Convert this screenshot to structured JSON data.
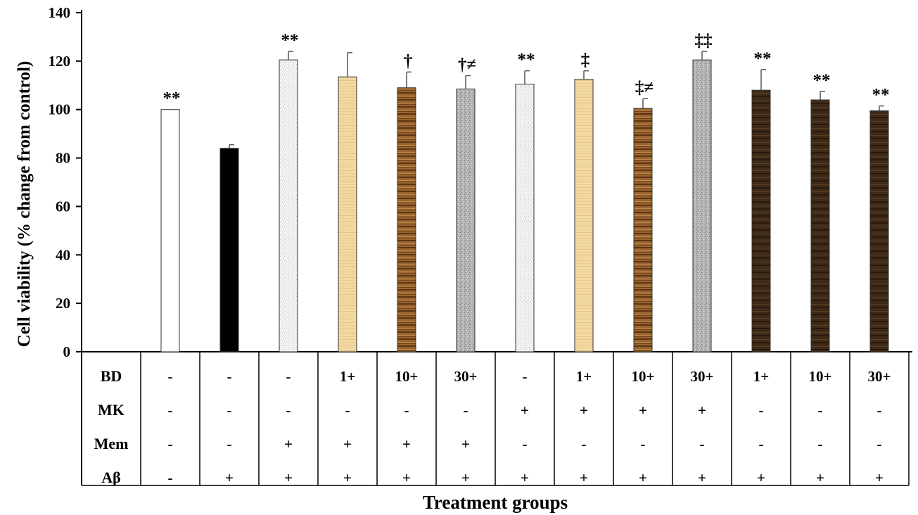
{
  "chart_data": {
    "type": "bar",
    "xlabel": "Treatment groups",
    "ylabel": "Cell viability (% change from control)",
    "ylim": [
      0,
      140
    ],
    "yticks": [
      "0",
      "20",
      "40",
      "60",
      "80",
      "100",
      "120",
      "140"
    ],
    "grid": false,
    "values": [
      100,
      84,
      120.5,
      113.5,
      109,
      108.5,
      110.5,
      112.5,
      100.5,
      120.5,
      108,
      104,
      99.5
    ],
    "errors": [
      0,
      1.5,
      3.5,
      10,
      6.5,
      5.5,
      5.5,
      3.5,
      4,
      3.5,
      8.5,
      3.5,
      2
    ],
    "annotations": [
      "**",
      "",
      "**",
      "",
      "†",
      "†≠",
      "**",
      "‡",
      "‡≠",
      "‡‡",
      "**",
      "**",
      "**"
    ],
    "fills": [
      "white",
      "black",
      "light-gray-speckle",
      "tan-texture",
      "brown-wood",
      "gray-speckle",
      "light-gray-speckle",
      "tan-texture",
      "brown-wood",
      "gray-speckle",
      "dark-wood",
      "dark-wood",
      "dark-wood"
    ],
    "table": {
      "rows": [
        {
          "label": "BD",
          "cells": [
            "-",
            "-",
            "-",
            "1+",
            "10+",
            "30+",
            "-",
            "1+",
            "10+",
            "30+",
            "1+",
            "10+",
            "30+"
          ]
        },
        {
          "label": "MK",
          "cells": [
            "-",
            "-",
            "-",
            "-",
            "-",
            "-",
            "+",
            "+",
            "+",
            "+",
            "-",
            "-",
            "-"
          ]
        },
        {
          "label": "Mem",
          "cells": [
            "-",
            "-",
            "+",
            "+",
            "+",
            "+",
            "-",
            "-",
            "-",
            "-",
            "-",
            "-",
            "-"
          ]
        },
        {
          "label": "Aβ",
          "cells": [
            "-",
            "+",
            "+",
            "+",
            "+",
            "+",
            "+",
            "+",
            "+",
            "+",
            "+",
            "+",
            "+"
          ]
        }
      ]
    }
  },
  "colors": {
    "axis": "#000000",
    "bar_outline": "#333333",
    "white": "#ffffff",
    "black": "#000000",
    "light_gray_speckle": "#ececec",
    "tan_texture": "#f0d8a0",
    "brown_wood": "#8a5a2a",
    "gray_speckle": "#a0a0a0",
    "dark_wood": "#3e2a18"
  }
}
